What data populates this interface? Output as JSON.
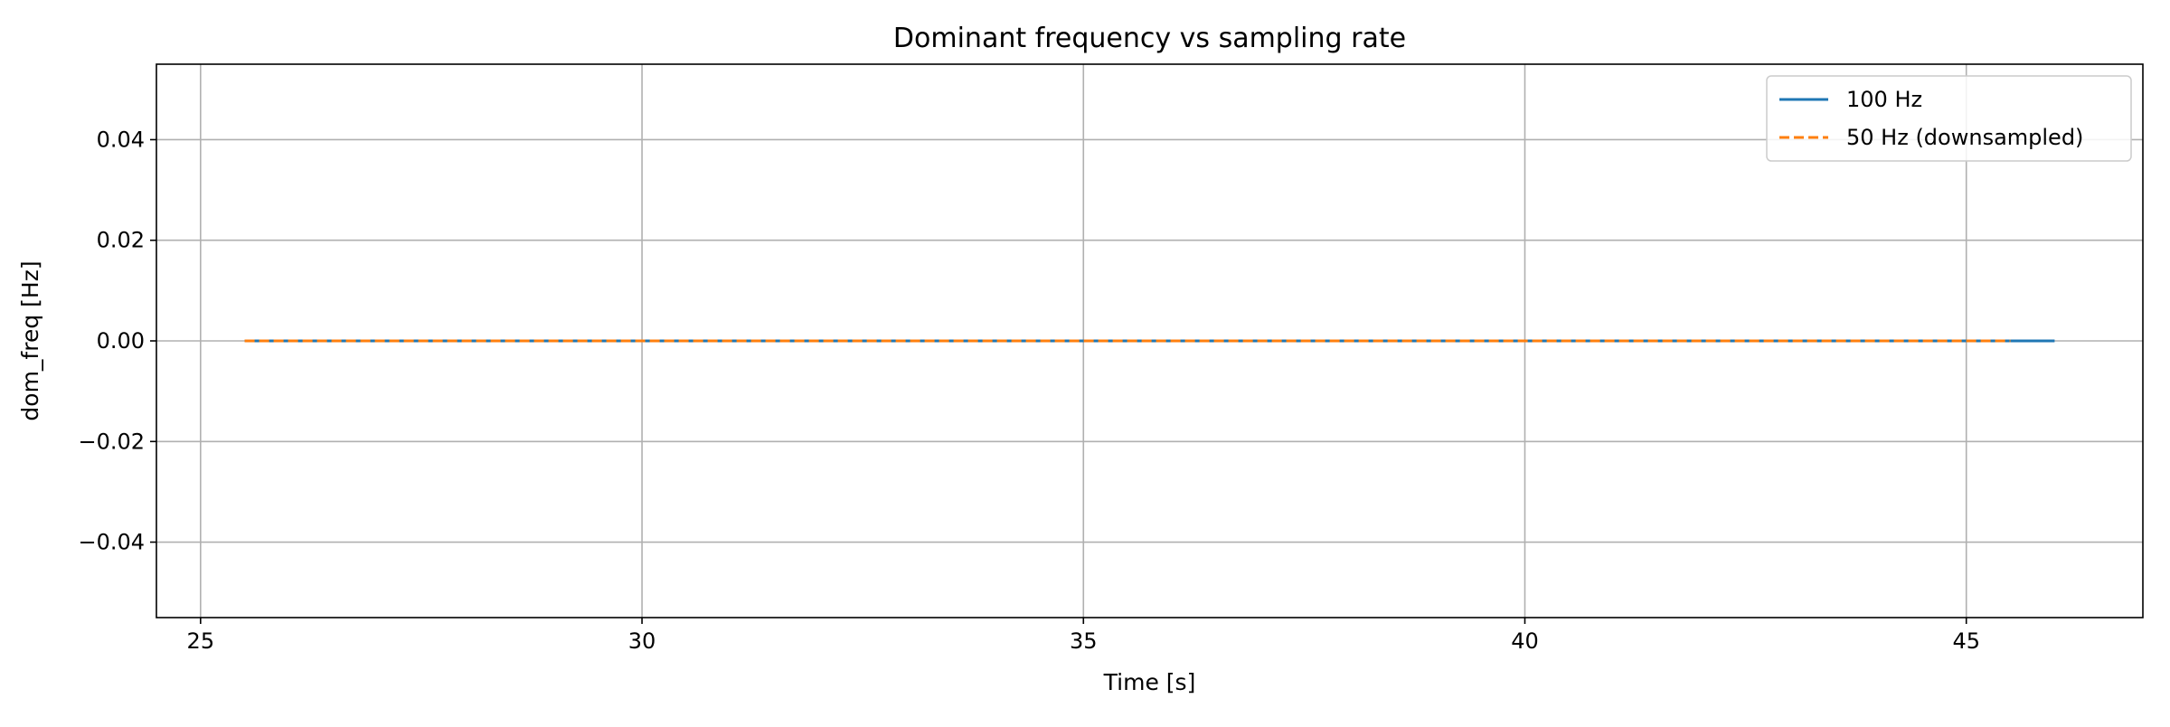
{
  "chart_data": {
    "type": "line",
    "title": "Dominant frequency vs sampling rate",
    "xlabel": "Time [s]",
    "ylabel": "dom_freq [Hz]",
    "xlim": [
      24.5,
      47.0
    ],
    "ylim": [
      -0.055,
      0.055
    ],
    "xticks": [
      25,
      30,
      35,
      40,
      45
    ],
    "xtick_labels": [
      "25",
      "30",
      "35",
      "40",
      "45"
    ],
    "yticks": [
      0.04,
      0.02,
      0.0,
      -0.02,
      -0.04
    ],
    "ytick_labels": [
      "0.04",
      "0.02",
      "0.00",
      "−0.02",
      "−0.04"
    ],
    "grid": true,
    "legend_position": "top-right",
    "series": [
      {
        "name": "100 Hz",
        "color": "#1f77b4",
        "line_style": "solid",
        "x": [
          25.5,
          30,
          35,
          40,
          45,
          46.0
        ],
        "y": [
          0,
          0,
          0,
          0,
          0,
          0
        ]
      },
      {
        "name": "50 Hz (downsampled)",
        "color": "#ff7f0e",
        "line_style": "dashed",
        "x": [
          25.5,
          30,
          35,
          40,
          45,
          45.5
        ],
        "y": [
          0,
          0,
          0,
          0,
          0,
          0
        ]
      }
    ]
  }
}
